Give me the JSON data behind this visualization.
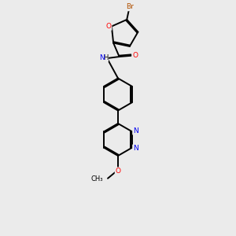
{
  "bg_color": "#ebebeb",
  "bond_color": "#000000",
  "furan_o_color": "#ff0000",
  "n_color": "#0000ee",
  "br_color": "#b05000",
  "o_color": "#ff0000",
  "line_width": 1.4,
  "dbo": 0.055,
  "xlim": [
    0,
    10
  ],
  "ylim": [
    0,
    12
  ]
}
